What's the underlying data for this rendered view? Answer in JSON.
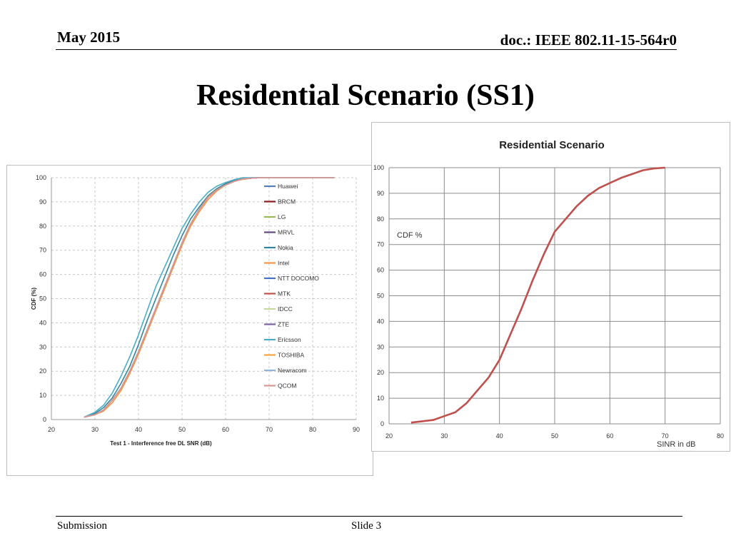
{
  "header": {
    "date": "May 2015",
    "doc": "doc.: IEEE 802.11-15-564r0"
  },
  "slide_title": "Residential Scenario (SS1)",
  "footer": {
    "left": "Submission",
    "center": "Slide 3"
  },
  "chart_data": [
    {
      "type": "line",
      "title": "",
      "xlabel": "Test 1 - Interference free DL SNR (dB)",
      "ylabel": "CDF (%)",
      "xlim": [
        20,
        90
      ],
      "ylim": [
        0,
        100
      ],
      "xticks": [
        20,
        30,
        40,
        50,
        60,
        70,
        80,
        90
      ],
      "yticks": [
        0,
        10,
        20,
        30,
        40,
        50,
        60,
        70,
        80,
        90,
        100
      ],
      "grid": "dashed",
      "legend_position": "right",
      "x": [
        27.5,
        30,
        32,
        34,
        36,
        38,
        40,
        42,
        44,
        46,
        48,
        50,
        52,
        54,
        56,
        58,
        60,
        62,
        64,
        66,
        68,
        70,
        75,
        80,
        85
      ],
      "series": [
        {
          "name": "Huawei",
          "color": "#4f81bd",
          "values": [
            1,
            2,
            4,
            8,
            13,
            20,
            28,
            37,
            46,
            55,
            64,
            73,
            81,
            87,
            92,
            95,
            97,
            98.5,
            99.5,
            99.8,
            100,
            100,
            100,
            100,
            100
          ]
        },
        {
          "name": "BRCM",
          "color": "#8b1a1a",
          "values": [
            1,
            2,
            4,
            8,
            13,
            20,
            28,
            37,
            46,
            55,
            64,
            73,
            81,
            87,
            92,
            95,
            97,
            98.5,
            99.5,
            99.8,
            100,
            100,
            100,
            100,
            100
          ]
        },
        {
          "name": "LG",
          "color": "#9bbb59",
          "values": [
            1,
            2,
            4,
            8,
            13,
            20,
            28,
            37,
            46,
            55,
            64,
            73,
            81,
            87,
            92,
            95,
            97,
            98.5,
            99.5,
            99.8,
            100,
            100,
            100,
            100,
            100
          ]
        },
        {
          "name": "MRVL",
          "color": "#604a7b",
          "values": [
            1,
            2,
            4,
            8,
            13,
            20,
            28,
            37,
            46,
            55,
            64,
            73,
            81,
            87,
            92,
            95,
            97,
            98.5,
            99.5,
            99.8,
            100,
            100,
            100,
            100,
            100
          ]
        },
        {
          "name": "Nokia",
          "color": "#31859c",
          "values": [
            1,
            2.5,
            5,
            9,
            15,
            22,
            31,
            41,
            50,
            59,
            68,
            76,
            83,
            88,
            92.5,
            95.5,
            97.5,
            99,
            99.6,
            100,
            100,
            100,
            100,
            100,
            100
          ]
        },
        {
          "name": "Intel",
          "color": "#f79646",
          "values": [
            1,
            2,
            3.5,
            7,
            12,
            19,
            27,
            36,
            45,
            54,
            63,
            72,
            80,
            86,
            91,
            94.5,
            97,
            98.5,
            99.3,
            99.8,
            100,
            100,
            100,
            100,
            100
          ]
        },
        {
          "name": "NTT DOCOMO",
          "color": "#4472c4",
          "values": [
            1,
            2,
            4,
            8,
            13,
            20,
            28,
            37,
            46,
            55,
            64,
            73,
            81,
            87,
            92,
            95,
            97,
            98.5,
            99.5,
            99.8,
            100,
            100,
            100,
            100,
            100
          ]
        },
        {
          "name": "MTK",
          "color": "#c0504d",
          "values": [
            1,
            2,
            4,
            8,
            13,
            20,
            28,
            37,
            46,
            55,
            64,
            73,
            81,
            87,
            92,
            95,
            97,
            98.5,
            99.5,
            99.8,
            100,
            100,
            100,
            100,
            100
          ]
        },
        {
          "name": "IDCC",
          "color": "#c4d79b",
          "values": [
            1,
            2,
            4,
            8,
            13,
            20,
            28,
            37,
            46,
            55,
            64,
            73,
            81,
            87,
            92,
            95,
            97,
            98.5,
            99.5,
            99.8,
            100,
            100,
            100,
            100,
            100
          ]
        },
        {
          "name": "ZTE",
          "color": "#8064a2",
          "values": [
            1,
            2,
            4,
            8,
            13,
            20,
            28,
            37,
            46,
            55,
            64,
            73,
            81,
            87,
            92,
            95,
            97,
            98.5,
            99.5,
            99.8,
            100,
            100,
            100,
            100,
            100
          ]
        },
        {
          "name": "Ericsson",
          "color": "#4bacc6",
          "values": [
            1,
            3,
            6,
            11,
            18,
            26,
            35,
            45,
            55,
            63,
            71,
            79,
            85,
            90,
            94,
            96.5,
            98,
            99.2,
            100,
            100,
            100,
            100,
            100,
            100,
            100
          ]
        },
        {
          "name": "TOSHIBA",
          "color": "#f6a43c",
          "values": [
            1,
            2,
            4,
            8,
            13,
            20,
            28,
            37,
            46,
            55,
            64,
            73,
            81,
            87,
            92,
            95,
            97,
            98.5,
            99.5,
            99.8,
            100,
            100,
            100,
            100,
            100
          ]
        },
        {
          "name": "Newracom",
          "color": "#95b3d7",
          "values": [
            1,
            2,
            4,
            8,
            13,
            20,
            28,
            37,
            46,
            55,
            64,
            73,
            81,
            87,
            92,
            95,
            97,
            98.5,
            99.5,
            99.8,
            100,
            100,
            100,
            100,
            100
          ]
        },
        {
          "name": "QCOM",
          "color": "#d99694",
          "values": [
            1,
            2,
            4,
            8,
            13,
            20,
            28,
            37,
            46,
            55,
            64,
            73,
            81,
            87,
            92,
            95,
            97,
            98.5,
            99.5,
            99.8,
            100,
            100,
            100,
            100,
            100
          ]
        }
      ]
    },
    {
      "type": "line",
      "title": "Residential Scenario",
      "xlabel": "SINR in dB",
      "ylabel": "CDF %",
      "xlim": [
        20,
        80
      ],
      "ylim": [
        0,
        100
      ],
      "xticks": [
        20,
        30,
        40,
        50,
        60,
        70,
        80
      ],
      "yticks": [
        0,
        10,
        20,
        30,
        40,
        50,
        60,
        70,
        80,
        90,
        100
      ],
      "grid": "solid",
      "series": [
        {
          "color": "#c0504d",
          "x": [
            24,
            26,
            28,
            30,
            32,
            34,
            36,
            38,
            40,
            42,
            44,
            46,
            48,
            50,
            52,
            54,
            56,
            58,
            60,
            62,
            64,
            66,
            68,
            70
          ],
          "values": [
            0.5,
            1,
            1.5,
            3,
            4.5,
            8,
            13,
            18,
            25,
            35,
            45,
            56,
            66,
            75,
            80,
            85,
            89,
            92,
            94,
            96,
            97.5,
            99,
            99.7,
            100
          ]
        }
      ]
    }
  ]
}
